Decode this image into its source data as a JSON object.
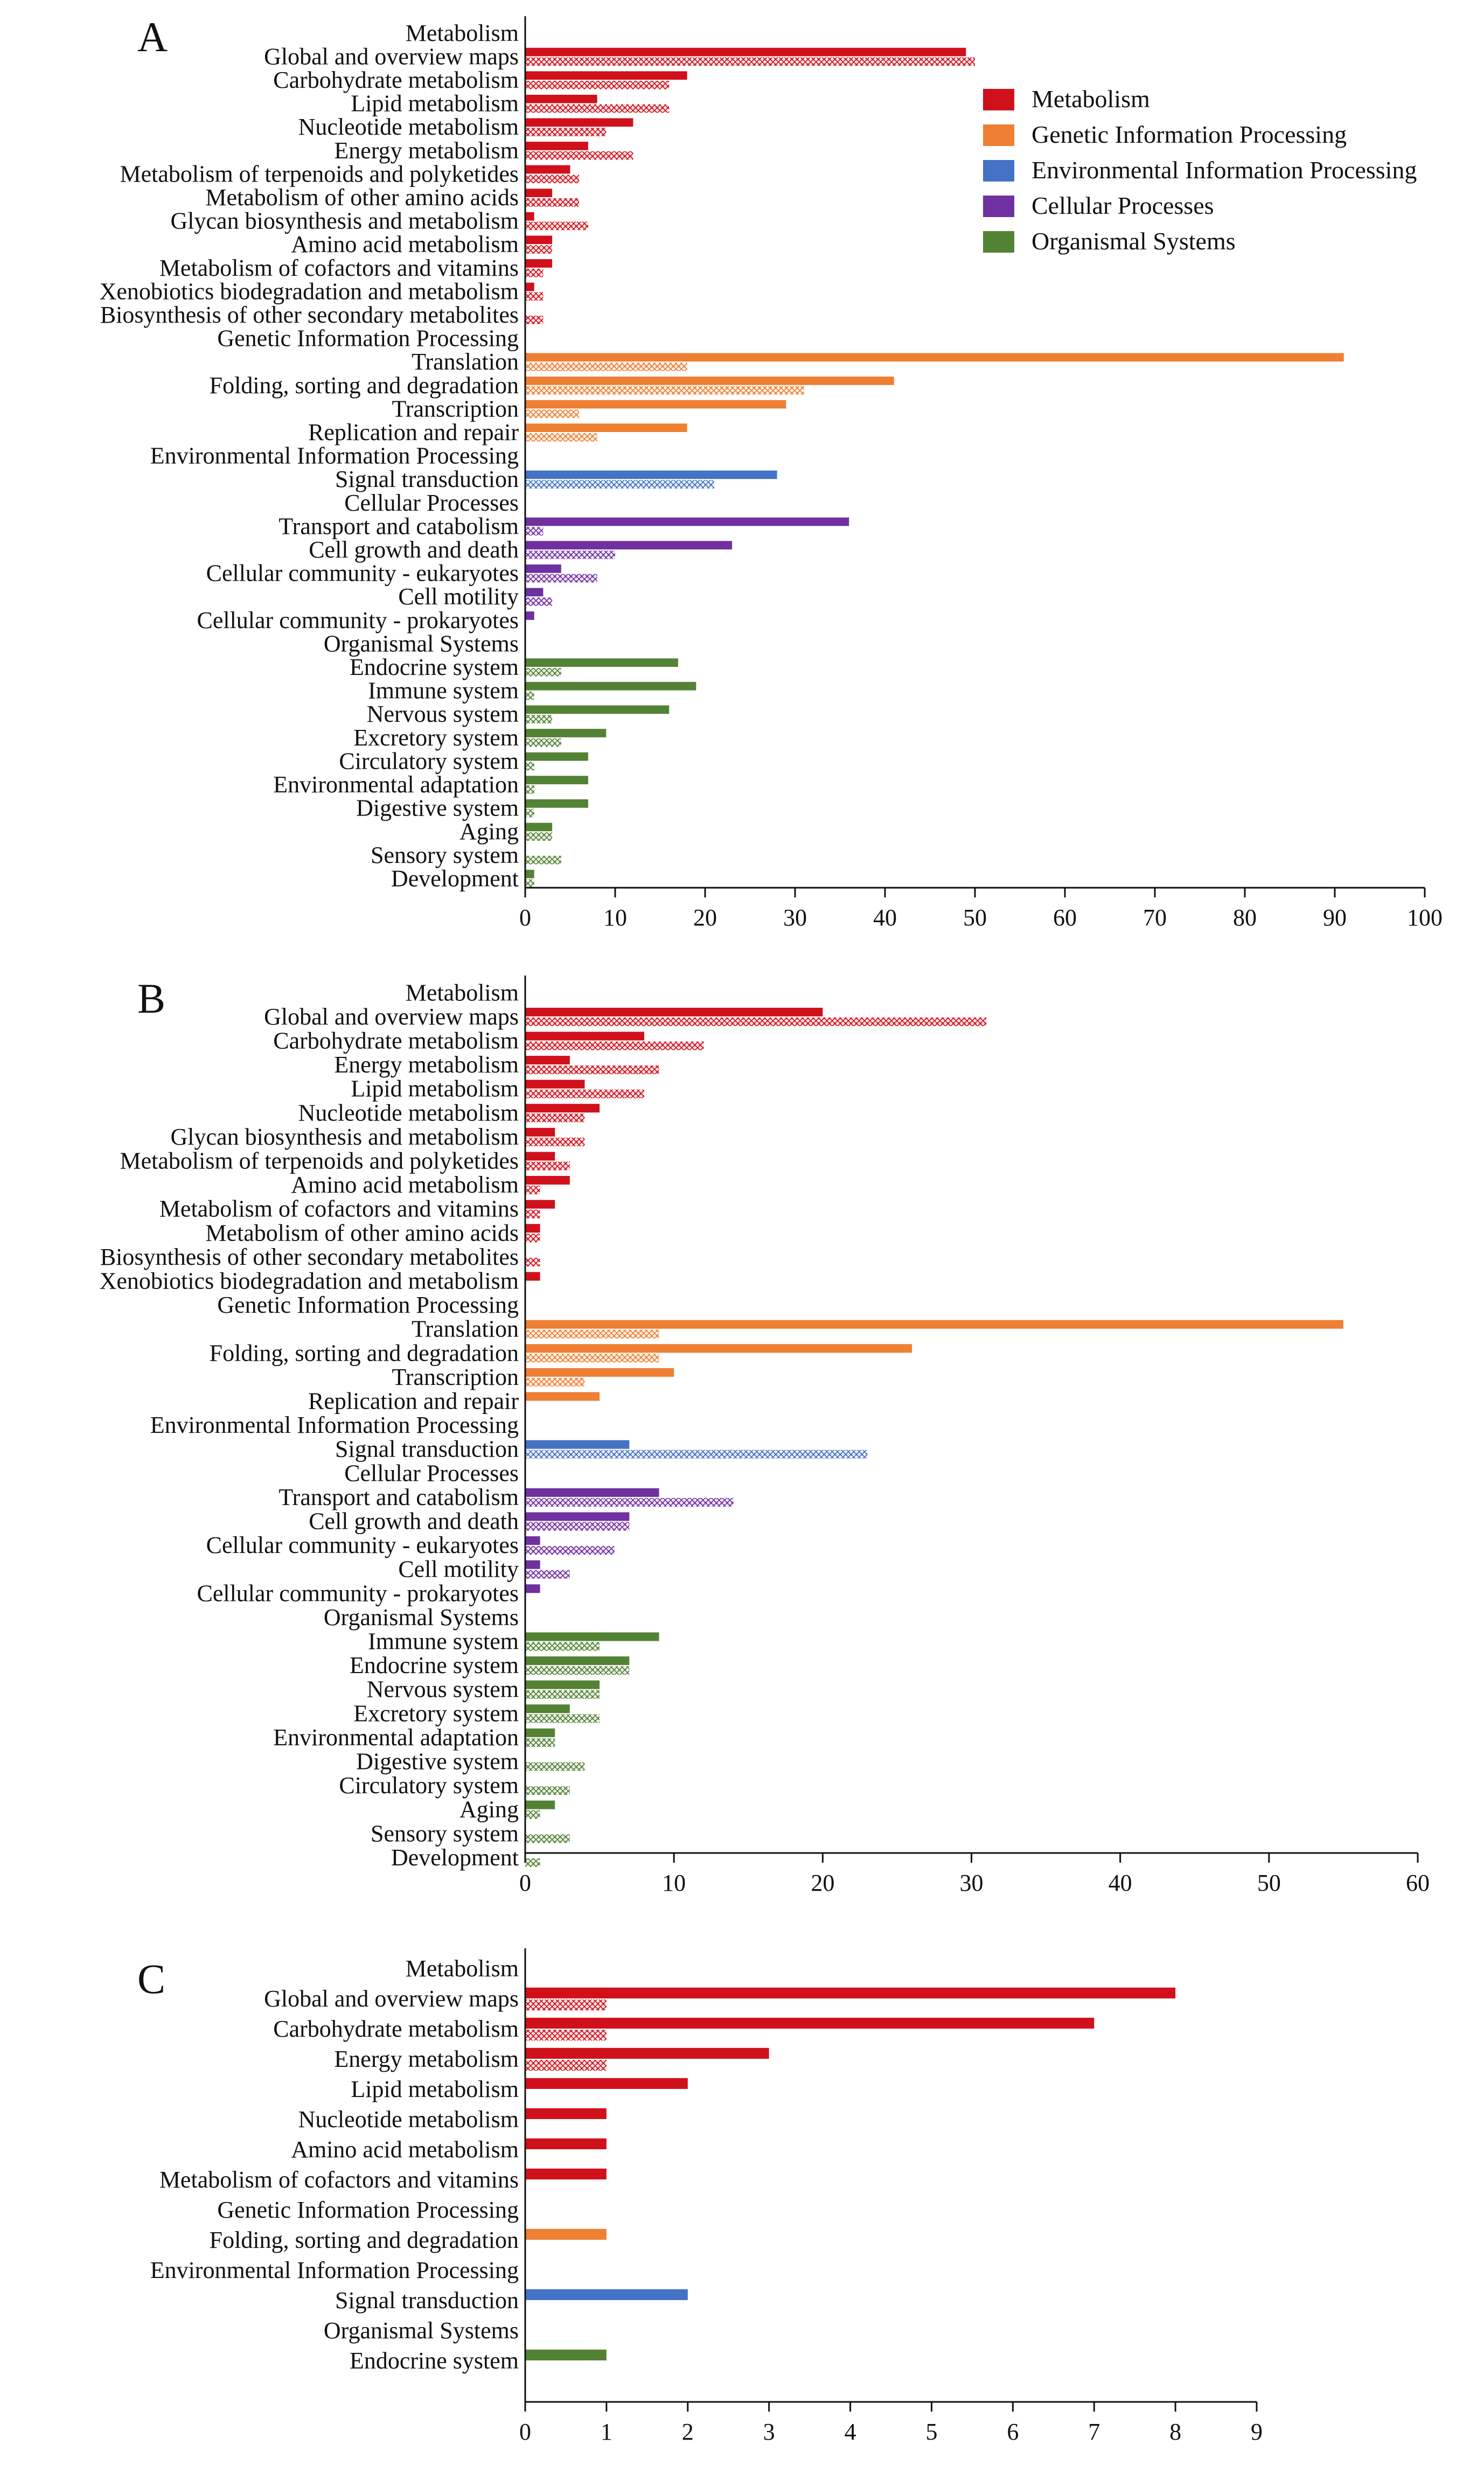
{
  "colors": {
    "Metabolism": "#d0111b",
    "Genetic Information Processing": "#ef7f33",
    "Environmental Information Processing": "#4472c4",
    "Cellular Processes": "#7030a0",
    "Organismal Systems": "#548235"
  },
  "legend": {
    "entries": [
      "Metabolism",
      "Genetic Information Processing",
      "Environmental Information Processing",
      "Cellular Processes",
      "Organismal Systems"
    ]
  },
  "chart_data": [
    {
      "type": "bar",
      "panel_label": "A",
      "orientation": "horizontal",
      "xlim": [
        0,
        100
      ],
      "xticks": [
        0,
        10,
        20,
        30,
        40,
        50,
        60,
        70,
        80,
        90,
        100
      ],
      "series_styles": [
        "solid",
        "hatched"
      ],
      "rows": [
        {
          "label": "Metabolism",
          "header": true
        },
        {
          "label": "Global and overview maps",
          "cat": "Metabolism",
          "values": [
            49,
            50
          ]
        },
        {
          "label": "Carbohydrate metabolism",
          "cat": "Metabolism",
          "values": [
            18,
            16
          ]
        },
        {
          "label": "Lipid metabolism",
          "cat": "Metabolism",
          "values": [
            8,
            16
          ]
        },
        {
          "label": "Nucleotide metabolism",
          "cat": "Metabolism",
          "values": [
            12,
            9
          ]
        },
        {
          "label": "Energy metabolism",
          "cat": "Metabolism",
          "values": [
            7,
            12
          ]
        },
        {
          "label": "Metabolism of terpenoids and polyketides",
          "cat": "Metabolism",
          "values": [
            5,
            6
          ]
        },
        {
          "label": "Metabolism of other amino acids",
          "cat": "Metabolism",
          "values": [
            3,
            6
          ]
        },
        {
          "label": "Glycan biosynthesis and metabolism",
          "cat": "Metabolism",
          "values": [
            1,
            7
          ]
        },
        {
          "label": "Amino acid metabolism",
          "cat": "Metabolism",
          "values": [
            3,
            3
          ]
        },
        {
          "label": "Metabolism of cofactors and vitamins",
          "cat": "Metabolism",
          "values": [
            3,
            2
          ]
        },
        {
          "label": "Xenobiotics biodegradation and metabolism",
          "cat": "Metabolism",
          "values": [
            1,
            2
          ]
        },
        {
          "label": "Biosynthesis of other secondary metabolites",
          "cat": "Metabolism",
          "values": [
            0,
            2
          ]
        },
        {
          "label": "Genetic Information Processing",
          "header": true
        },
        {
          "label": "Translation",
          "cat": "Genetic Information Processing",
          "values": [
            91,
            18
          ]
        },
        {
          "label": "Folding, sorting and degradation",
          "cat": "Genetic Information Processing",
          "values": [
            41,
            31
          ]
        },
        {
          "label": "Transcription",
          "cat": "Genetic Information Processing",
          "values": [
            29,
            6
          ]
        },
        {
          "label": "Replication and repair",
          "cat": "Genetic Information Processing",
          "values": [
            18,
            8
          ]
        },
        {
          "label": "Environmental Information Processing",
          "header": true
        },
        {
          "label": "Signal transduction",
          "cat": "Environmental Information Processing",
          "values": [
            28,
            21
          ]
        },
        {
          "label": "Cellular Processes",
          "header": true
        },
        {
          "label": "Transport and catabolism",
          "cat": "Cellular Processes",
          "values": [
            36,
            2
          ]
        },
        {
          "label": "Cell growth and death",
          "cat": "Cellular Processes",
          "values": [
            23,
            10
          ]
        },
        {
          "label": "Cellular community - eukaryotes",
          "cat": "Cellular Processes",
          "values": [
            4,
            8
          ]
        },
        {
          "label": "Cell motility",
          "cat": "Cellular Processes",
          "values": [
            2,
            3
          ]
        },
        {
          "label": "Cellular community - prokaryotes",
          "cat": "Cellular Processes",
          "values": [
            1,
            0
          ]
        },
        {
          "label": "Organismal Systems",
          "header": true
        },
        {
          "label": "Endocrine system",
          "cat": "Organismal Systems",
          "values": [
            17,
            4
          ]
        },
        {
          "label": "Immune system",
          "cat": "Organismal Systems",
          "values": [
            19,
            1
          ]
        },
        {
          "label": "Nervous system",
          "cat": "Organismal Systems",
          "values": [
            16,
            3
          ]
        },
        {
          "label": "Excretory system",
          "cat": "Organismal Systems",
          "values": [
            9,
            4
          ]
        },
        {
          "label": "Circulatory system",
          "cat": "Organismal Systems",
          "values": [
            7,
            1
          ]
        },
        {
          "label": "Environmental adaptation",
          "cat": "Organismal Systems",
          "values": [
            7,
            1
          ]
        },
        {
          "label": "Digestive system",
          "cat": "Organismal Systems",
          "values": [
            7,
            1
          ]
        },
        {
          "label": "Aging",
          "cat": "Organismal Systems",
          "values": [
            3,
            3
          ]
        },
        {
          "label": "Sensory system",
          "cat": "Organismal Systems",
          "values": [
            0,
            4
          ]
        },
        {
          "label": "Development",
          "cat": "Organismal Systems",
          "values": [
            1,
            1
          ]
        }
      ]
    },
    {
      "type": "bar",
      "panel_label": "B",
      "orientation": "horizontal",
      "xlim": [
        0,
        60
      ],
      "xticks": [
        0,
        10,
        20,
        30,
        40,
        50,
        60
      ],
      "series_styles": [
        "solid",
        "hatched"
      ],
      "rows": [
        {
          "label": "Metabolism",
          "header": true
        },
        {
          "label": "Global and overview maps",
          "cat": "Metabolism",
          "values": [
            20,
            31
          ]
        },
        {
          "label": "Carbohydrate metabolism",
          "cat": "Metabolism",
          "values": [
            8,
            12
          ]
        },
        {
          "label": "Energy metabolism",
          "cat": "Metabolism",
          "values": [
            3,
            9
          ]
        },
        {
          "label": "Lipid metabolism",
          "cat": "Metabolism",
          "values": [
            4,
            8
          ]
        },
        {
          "label": "Nucleotide metabolism",
          "cat": "Metabolism",
          "values": [
            5,
            4
          ]
        },
        {
          "label": "Glycan biosynthesis and metabolism",
          "cat": "Metabolism",
          "values": [
            2,
            4
          ]
        },
        {
          "label": "Metabolism of terpenoids and polyketides",
          "cat": "Metabolism",
          "values": [
            2,
            3
          ]
        },
        {
          "label": "Amino acid metabolism",
          "cat": "Metabolism",
          "values": [
            3,
            1
          ]
        },
        {
          "label": "Metabolism of cofactors and vitamins",
          "cat": "Metabolism",
          "values": [
            2,
            1
          ]
        },
        {
          "label": "Metabolism of other amino acids",
          "cat": "Metabolism",
          "values": [
            1,
            1
          ]
        },
        {
          "label": "Biosynthesis of other secondary metabolites",
          "cat": "Metabolism",
          "values": [
            0,
            1
          ]
        },
        {
          "label": "Xenobiotics biodegradation and metabolism",
          "cat": "Metabolism",
          "values": [
            1,
            0
          ]
        },
        {
          "label": "Genetic Information Processing",
          "header": true
        },
        {
          "label": "Translation",
          "cat": "Genetic Information Processing",
          "values": [
            55,
            9
          ]
        },
        {
          "label": "Folding, sorting and degradation",
          "cat": "Genetic Information Processing",
          "values": [
            26,
            9
          ]
        },
        {
          "label": "Transcription",
          "cat": "Genetic Information Processing",
          "values": [
            10,
            4
          ]
        },
        {
          "label": "Replication and repair",
          "cat": "Genetic Information Processing",
          "values": [
            5,
            0
          ]
        },
        {
          "label": "Environmental Information Processing",
          "header": true
        },
        {
          "label": "Signal transduction",
          "cat": "Environmental Information Processing",
          "values": [
            7,
            23
          ]
        },
        {
          "label": "Cellular Processes",
          "header": true
        },
        {
          "label": "Transport and catabolism",
          "cat": "Cellular Processes",
          "values": [
            9,
            14
          ]
        },
        {
          "label": "Cell growth and death",
          "cat": "Cellular Processes",
          "values": [
            7,
            7
          ]
        },
        {
          "label": "Cellular community - eukaryotes",
          "cat": "Cellular Processes",
          "values": [
            1,
            6
          ]
        },
        {
          "label": "Cell motility",
          "cat": "Cellular Processes",
          "values": [
            1,
            3
          ]
        },
        {
          "label": "Cellular community - prokaryotes",
          "cat": "Cellular Processes",
          "values": [
            1,
            0
          ]
        },
        {
          "label": "Organismal Systems",
          "header": true
        },
        {
          "label": "Immune system",
          "cat": "Organismal Systems",
          "values": [
            9,
            5
          ]
        },
        {
          "label": "Endocrine system",
          "cat": "Organismal Systems",
          "values": [
            7,
            7
          ]
        },
        {
          "label": "Nervous system",
          "cat": "Organismal Systems",
          "values": [
            5,
            5
          ]
        },
        {
          "label": "Excretory system",
          "cat": "Organismal Systems",
          "values": [
            3,
            5
          ]
        },
        {
          "label": "Environmental adaptation",
          "cat": "Organismal Systems",
          "values": [
            2,
            2
          ]
        },
        {
          "label": "Digestive system",
          "cat": "Organismal Systems",
          "values": [
            0,
            4
          ]
        },
        {
          "label": "Circulatory system",
          "cat": "Organismal Systems",
          "values": [
            0,
            3
          ]
        },
        {
          "label": "Aging",
          "cat": "Organismal Systems",
          "values": [
            2,
            1
          ]
        },
        {
          "label": "Sensory system",
          "cat": "Organismal Systems",
          "values": [
            0,
            3
          ]
        },
        {
          "label": "Development",
          "cat": "Organismal Systems",
          "values": [
            0,
            1
          ]
        }
      ]
    },
    {
      "type": "bar",
      "panel_label": "C",
      "orientation": "horizontal",
      "xlim": [
        0,
        9
      ],
      "xticks": [
        0,
        1,
        2,
        3,
        4,
        5,
        6,
        7,
        8,
        9
      ],
      "series_styles": [
        "solid",
        "hatched"
      ],
      "rows": [
        {
          "label": "Metabolism",
          "header": true
        },
        {
          "label": "Global and overview maps",
          "cat": "Metabolism",
          "values": [
            8,
            1
          ]
        },
        {
          "label": "Carbohydrate metabolism",
          "cat": "Metabolism",
          "values": [
            7,
            1
          ]
        },
        {
          "label": "Energy metabolism",
          "cat": "Metabolism",
          "values": [
            3,
            1
          ]
        },
        {
          "label": "Lipid metabolism",
          "cat": "Metabolism",
          "values": [
            2,
            0
          ]
        },
        {
          "label": "Nucleotide metabolism",
          "cat": "Metabolism",
          "values": [
            1,
            0
          ]
        },
        {
          "label": "Amino acid metabolism",
          "cat": "Metabolism",
          "values": [
            1,
            0
          ]
        },
        {
          "label": "Metabolism of cofactors and vitamins",
          "cat": "Metabolism",
          "values": [
            1,
            0
          ]
        },
        {
          "label": "Genetic Information Processing",
          "header": true
        },
        {
          "label": "Folding, sorting and degradation",
          "cat": "Genetic Information Processing",
          "values": [
            1,
            0
          ]
        },
        {
          "label": "Environmental Information Processing",
          "header": true
        },
        {
          "label": "Signal transduction",
          "cat": "Environmental Information Processing",
          "values": [
            2,
            0
          ]
        },
        {
          "label": "Organismal Systems",
          "header": true
        },
        {
          "label": "Endocrine system",
          "cat": "Organismal Systems",
          "values": [
            1,
            0
          ]
        }
      ]
    }
  ]
}
